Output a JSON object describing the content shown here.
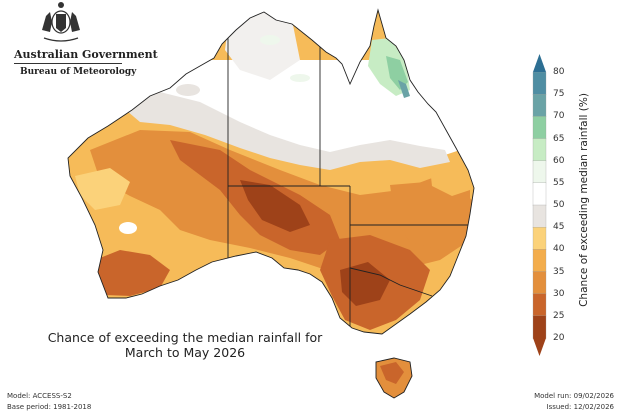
{
  "header": {
    "government": "Australian Government",
    "bureau": "Bureau of Meteorology"
  },
  "map": {
    "title_line1": "Chance of exceeding the median rainfall for",
    "title_line2": "March to May 2026",
    "icons": [
      "coat-of-arms"
    ]
  },
  "legend": {
    "label": "Chance of exceeding median rainfall (%)",
    "ticks": [
      "80",
      "75",
      "70",
      "65",
      "60",
      "55",
      "50",
      "45",
      "40",
      "35",
      "30",
      "25",
      "20"
    ],
    "colors": {
      "80": "#2d6f93",
      "75": "#4f8ea3",
      "70": "#6aa3a6",
      "65": "#8ecfa2",
      "60": "#c7ecc4",
      "55": "#eef7ec",
      "50": "#ffffff",
      "45": "#e8e4e0",
      "40": "#fbd27a",
      "35": "#f3ad4c",
      "30": "#e38f3c",
      "25": "#c9652b",
      "20": "#9e4219"
    }
  },
  "footer": {
    "model": "Model: ACCESS-S2",
    "base_period": "Base period: 1981-2018",
    "model_run": "Model run: 09/02/2026",
    "issued": "Issued: 12/02/2026"
  }
}
